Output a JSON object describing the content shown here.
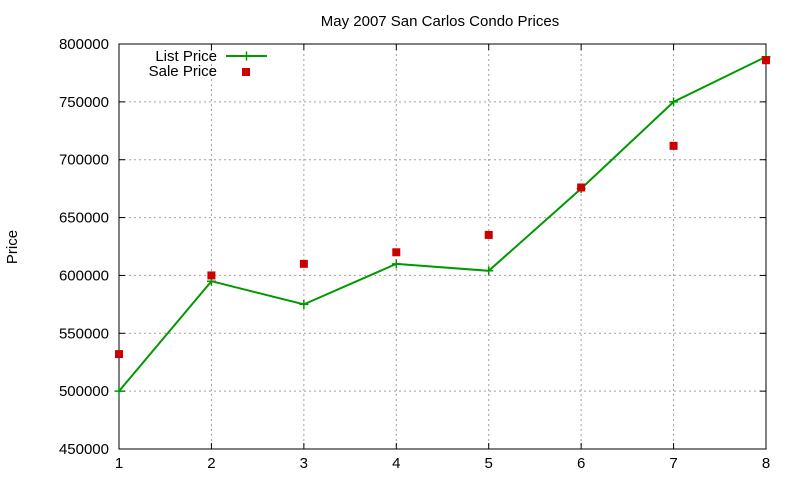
{
  "chart_data": {
    "type": "line",
    "title": "May 2007 San Carlos Condo Prices",
    "xlabel": "",
    "ylabel": "Price",
    "x": [
      1,
      2,
      3,
      4,
      5,
      6,
      7,
      8
    ],
    "xlim": [
      1,
      8
    ],
    "ylim": [
      450000,
      800000
    ],
    "xticks": [
      1,
      2,
      3,
      4,
      5,
      6,
      7,
      8
    ],
    "yticks": [
      450000,
      500000,
      550000,
      600000,
      650000,
      700000,
      750000,
      800000
    ],
    "grid": true,
    "legend_position": "top-left",
    "series": [
      {
        "name": "List Price",
        "style": "line-with-plus-markers",
        "color": "#009900",
        "values": [
          500000,
          595000,
          575000,
          610000,
          604000,
          675000,
          750000,
          789000
        ]
      },
      {
        "name": "Sale Price",
        "style": "square-markers",
        "color": "#cc0000",
        "values": [
          532000,
          600000,
          610000,
          620000,
          635000,
          676000,
          712000,
          786000
        ]
      }
    ]
  }
}
